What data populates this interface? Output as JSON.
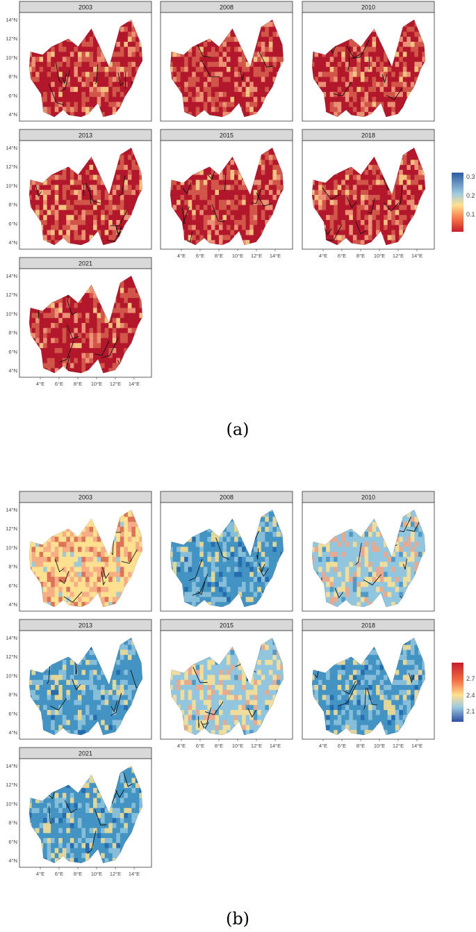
{
  "figure": {
    "part_a": {
      "caption": "(a)",
      "legend_ticks": [
        "0.3",
        "0.2",
        "0.1"
      ],
      "palette": "red-yellow-blue (low red, high blue)"
    },
    "part_b": {
      "caption": "(b)",
      "legend_ticks": [
        "2.7",
        "2.4",
        "2.1"
      ],
      "palette": "blue-yellow-red (low blue, high red)"
    },
    "panel_years": [
      "2003",
      "2008",
      "2010",
      "2013",
      "2015",
      "2018",
      "2021"
    ],
    "lat_ticks": [
      "14°N",
      "12°N",
      "10°N",
      "8°N",
      "6°N",
      "4°N"
    ],
    "lon_ticks": [
      "4°E",
      "6°E",
      "8°E",
      "10°E",
      "12°E",
      "14°E"
    ]
  },
  "colors": {
    "strip_fill": "#d9d9d9",
    "panel_border": "#333333",
    "red_dark": "#b2182b",
    "red": "#d6604d",
    "orange": "#f4a582",
    "yellow": "#fee090",
    "lightblue": "#92c5de",
    "blue": "#4393c3",
    "darkblue": "#2166ac"
  }
}
